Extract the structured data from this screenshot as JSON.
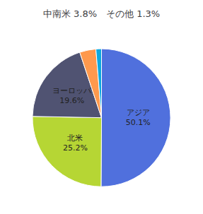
{
  "chart_data": {
    "type": "pie",
    "title": "中南米 3.8%　その他 1.3%",
    "values": [
      50.1,
      25.2,
      19.6,
      3.8,
      1.3
    ],
    "value_labels": [
      "アジア\n50.1%",
      "北米\n25.2%",
      "ヨーロッパ\n19.6%",
      null,
      null
    ],
    "data_labels": true
  }
}
